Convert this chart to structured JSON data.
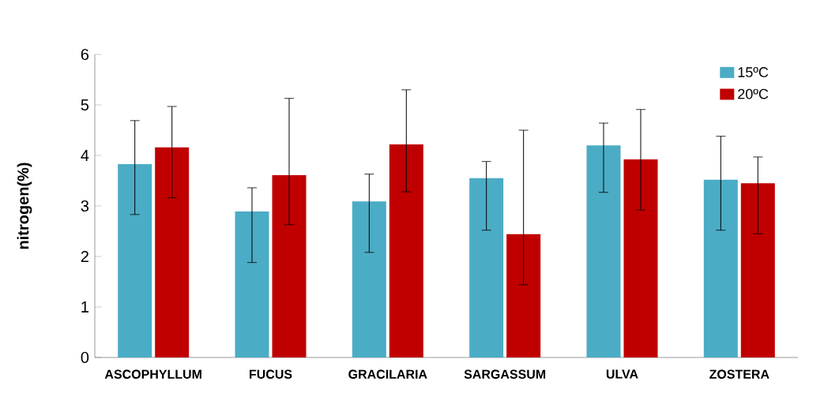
{
  "chart_data": {
    "type": "bar",
    "ylabel": "nitrogen(%)",
    "categories": [
      "ASCOPHYLLUM",
      "FUCUS",
      "GRACILARIA",
      "SARGASSUM",
      "ULVA",
      "ZOSTERA"
    ],
    "series": [
      {
        "name": "15ºC",
        "color": "#4bacc6",
        "values": [
          3.83,
          2.89,
          3.09,
          3.55,
          4.2,
          3.52
        ],
        "errors": [
          [
            2.83,
            4.69
          ],
          [
            1.88,
            3.36
          ],
          [
            2.08,
            3.63
          ],
          [
            2.52,
            3.88
          ],
          [
            3.27,
            4.64
          ],
          [
            2.52,
            4.38
          ]
        ]
      },
      {
        "name": "20ºC",
        "color": "#c00000",
        "values": [
          4.16,
          3.61,
          4.22,
          2.44,
          3.92,
          3.45
        ],
        "errors": [
          [
            3.16,
            4.97
          ],
          [
            2.63,
            5.13
          ],
          [
            3.28,
            5.3
          ],
          [
            1.44,
            4.5
          ],
          [
            2.92,
            4.91
          ],
          [
            2.45,
            3.97
          ]
        ]
      }
    ],
    "ylim": [
      0,
      6
    ],
    "yticks": [
      0,
      1,
      2,
      3,
      4,
      5,
      6
    ],
    "legend": "top right"
  }
}
